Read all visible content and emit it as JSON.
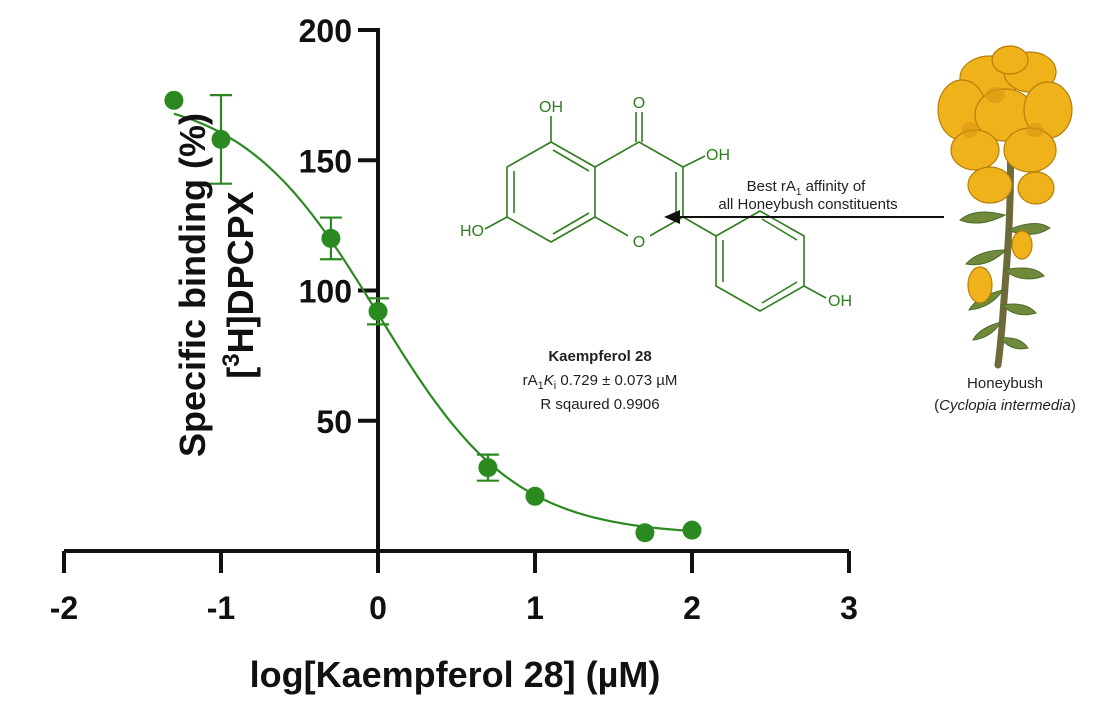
{
  "chart_data": {
    "type": "scatter",
    "xlabel": "log[Kaempferol 28] (µM)",
    "ylabel_line1": "Specific binding (%)",
    "ylabel_line2_prefix": "[",
    "ylabel_line2_sup": "3",
    "ylabel_line2_suffix": "H]DPCPX",
    "xlim": [
      -2,
      3
    ],
    "ylim": [
      0,
      200
    ],
    "x_ticks": [
      "-2",
      "-1",
      "0",
      "1",
      "2",
      "3"
    ],
    "y_ticks": [
      "50",
      "100",
      "150",
      "200"
    ],
    "series": [
      {
        "x": [
          -1.3,
          -1.0,
          -0.3,
          0.0,
          0.7,
          1.0,
          1.7,
          2.0
        ],
        "y": [
          173,
          158,
          120,
          92,
          32,
          21,
          7,
          8
        ],
        "err": [
          2,
          17,
          8,
          5,
          5,
          2,
          1,
          1
        ]
      }
    ],
    "fit_curve": {
      "top": 176,
      "bottom": 6,
      "log_ec50": 0.0,
      "hill": -1.0
    },
    "colors": {
      "series": "#2a8a1f",
      "axis": "#111111"
    }
  },
  "annotation": {
    "compound_name": "Kaempferol 28",
    "ki_prefix": "rA",
    "ki_sub1": "1",
    "ki_K": "K",
    "ki_subi": "i",
    "ki_value": " 0.729 ± 0.073 µM",
    "r_squared": "R sqaured 0.9906",
    "arrow_line1_prefix": "Best rA",
    "arrow_line1_sub": "1",
    "arrow_line1_suffix": " affinity of",
    "arrow_line2": "all Honeybush constituents"
  },
  "structure_labels": {
    "oh_top": "OH",
    "o_carbonyl": "O",
    "oh_right": "OH",
    "ho_left": "HO",
    "o_ring": "O",
    "oh_phenyl": "OH"
  },
  "plant": {
    "name": "Honeybush",
    "latin_open": "(",
    "latin": "Cyclopia intermedia",
    "latin_close": ")"
  }
}
